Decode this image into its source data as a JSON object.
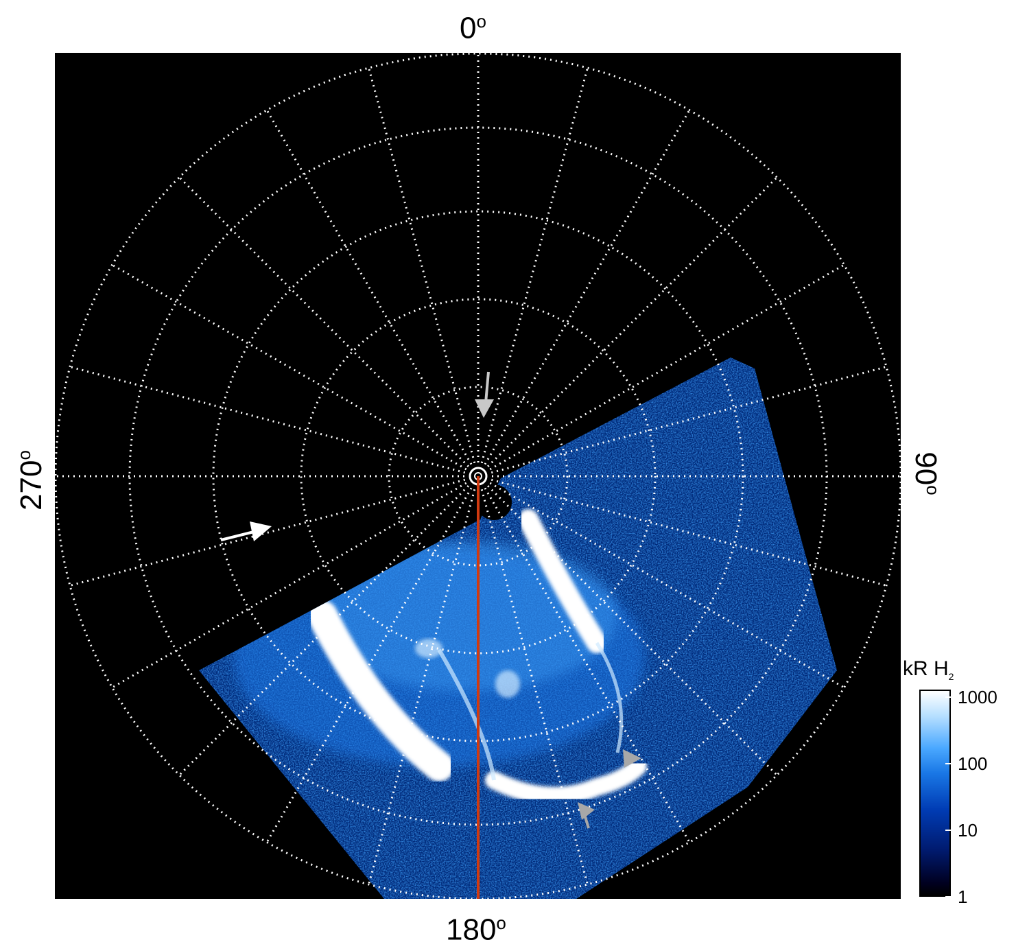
{
  "labels": {
    "top": "0",
    "bottom": "180",
    "left": "270",
    "right": "90",
    "degree": "o"
  },
  "colorbar": {
    "title": "kR H",
    "title_sub": "2",
    "ticks": [
      {
        "label": "1000",
        "value": 1000
      },
      {
        "label": "100",
        "value": 100
      },
      {
        "label": "10",
        "value": 10
      },
      {
        "label": "1",
        "value": 1
      }
    ]
  },
  "colors": {
    "background": "#000000",
    "grid": "#ffffff",
    "meridian_line": "#d03a10",
    "emission_low": "#002a7a",
    "emission_mid": "#1a78e6",
    "emission_high": "#ffffff",
    "arrow_white": "#ffffff",
    "arrow_gray": "#b0b0b0"
  }
}
